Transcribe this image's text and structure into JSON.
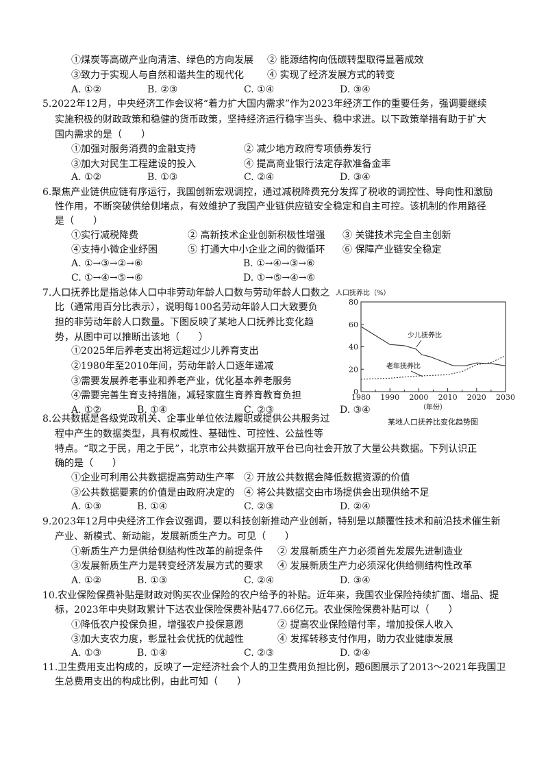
{
  "q4": {
    "options": [
      "①煤炭等高碳产业向清洁、绿色的方向发展",
      "② 能源结构向低碳转型取得显著成效",
      "③致力于实现人与自然和谐共生的现代化",
      "④ 实现了经济发展方式的转变"
    ],
    "choices": [
      "A. ①②",
      "B. ②③",
      "C. ①④",
      "D. ③④"
    ]
  },
  "q5": {
    "stem": [
      "5.2022年12月，中央经济工作会议将“着力扩大国内需求”作为2023年经济工作的重要任务，强调要继续",
      "实施积极的财政政策和稳健的货币政策，坚持经济运行稳字当头、稳中求进。以下政策举措有助于扩大",
      "国内需求的是（　　）"
    ],
    "options": [
      "①加强对服务消费的金融支持",
      "② 减少地方政府专项债券发行",
      "③加大对民生工程建设的投入",
      "④ 提高商业银行法定存款准备金率"
    ],
    "choices": [
      "A. ①②",
      "B. ①③",
      "C. ②④",
      "D. ③④"
    ]
  },
  "q6": {
    "stem": [
      "6.聚焦产业链供应链有序运行，我国创新宏观调控，通过减税降费充分发挥了税收的调控性、导向性和激励",
      "性作用，不断突破供给侧堵点，有效维护了我国产业链供应链安全稳定和自主可控。该机制的作用路径",
      "是（　　）"
    ],
    "options": [
      "①实行减税降费",
      "② 高新技术企业创新积极性增强",
      "③ 关键技术完全自主创新",
      "④支持小微企业纾困",
      "⑤ 打通大中小企业之间的微循环",
      "⑥ 保障产业链安全稳定"
    ],
    "choices": [
      "A. ①→③→②→⑥",
      "B. ①→④→③→⑥",
      "C. ①→④→⑤→⑥",
      "D. ①→⑤→④→⑥"
    ]
  },
  "q7": {
    "stem": [
      "7.人口抚养比是指总体人口中非劳动年龄人口数与劳动年龄人口数之",
      "比（通常用百分比表示），说明每100名劳动年龄人口大致要负",
      "担的非劳动年龄人口数量。下图反映了某地人口抚养比变化趋",
      "势，从图中可以推断出该地（　　）"
    ],
    "options": [
      "①2025年后养老支出将远超过少儿养育支出",
      "②1980年至2010年间，劳动年龄人口逐年递减",
      "③需要发展养老事业和养老产业，优化基本养老服务",
      "④需要完善生育支持措施，减轻家庭生育养育教育负担"
    ],
    "choices": [
      "A. ①②",
      "B. ①④",
      "C. ②③",
      "D. ③④"
    ]
  },
  "q8": {
    "stem": [
      "8.公共数据是各级党政机关、企事业单位依法履职或提供公共服务过",
      "程中产生的数据类型，具有权威性、基础性、可控性、公益性等",
      "特点。“取之于民，用之于民”，北京市公共数据开放平台已向社会开放了大量公共数据。下列认识正",
      "确的是（　　）"
    ],
    "options": [
      "①企业可利用公共数据提高劳动生产率",
      "② 开放公共数据会降低数据资源的价值",
      "③公共数据要素的价值是由政府决定的",
      "④ 将公共数据交由市场提供会出现供给不足"
    ],
    "choices": [
      "A. ①③",
      "B. ①④",
      "C. ②③",
      "D. ②④"
    ]
  },
  "q9": {
    "stem": [
      "9.2023年12月中央经济工作会议强调，要以科技创新推动产业创新，特别是以颠覆性技术和前沿技术催生新",
      "产业、新模式、新动能，发展新质生产力。可见（　　）"
    ],
    "options": [
      "①新质生产力是供给侧结构性改革的前提条件",
      "② 发展新质生产力必须首先发展先进制造业",
      "③发展新质生产力是转变经济发展方式的要求",
      "④ 发展新质生产力必须深化供给侧结构性改革"
    ],
    "choices": [
      "A. ①②",
      "B. ①③",
      "C. ②④",
      "D. ③④"
    ]
  },
  "q10": {
    "stem": [
      "10.农业保险保费补贴是财政对购买农业保险的农户给予的补贴。近年来，我国农业保险持续扩面、增品、提",
      "标，2023年中央财政累计下达农业保险保费补贴477.66亿元。农业保险保费补贴可以（　　）"
    ],
    "options": [
      "①降低农户投保负担，增强农户投保意愿",
      "② 提高农业保险赔付率，增加投保人收入",
      "③加大支农力度，彰显社会优抚的优越性",
      "④ 发挥转移支付作用，助力农业健康发展"
    ],
    "choices": [
      "A. ①③",
      "B. ①④",
      "C. ②③",
      "D. ②④"
    ]
  },
  "q11": {
    "stem": [
      "11.卫生费用支出构成的，反映了一定经济社会个人的卫生费用负担比例，题6图展示了2013～2021年我国卫",
      "生总费用支出的构成比例，由此可知（　　）"
    ]
  },
  "chart_data": {
    "type": "line",
    "title": "某地人口抚养比变化趋势图",
    "ylabel": "人口抚养比（%）",
    "xlabel": "（年份）",
    "xlim": [
      1980,
      2030
    ],
    "ylim": [
      0,
      80
    ],
    "xticks": [
      "1980",
      "1990",
      "2000",
      "2010",
      "2020",
      "2030"
    ],
    "yticks": [
      "0",
      "20",
      "40",
      "60",
      "80"
    ],
    "grid": false,
    "series": [
      {
        "name": "少儿抚养比",
        "style": "solid",
        "x": [
          1980,
          1985,
          1990,
          1995,
          1999,
          2001,
          2004,
          2008,
          2012,
          2016,
          2020,
          2025,
          2030
        ],
        "y": [
          58,
          50,
          42,
          41,
          38,
          33,
          31,
          27,
          23,
          23,
          25.5,
          25,
          23
        ]
      },
      {
        "name": "老年抚养比",
        "style": "dashed",
        "x": [
          1980,
          1990,
          2000,
          2010,
          2015,
          2020,
          2025,
          2030
        ],
        "y": [
          11,
          12,
          14,
          15,
          18,
          24,
          26,
          32
        ]
      }
    ]
  }
}
